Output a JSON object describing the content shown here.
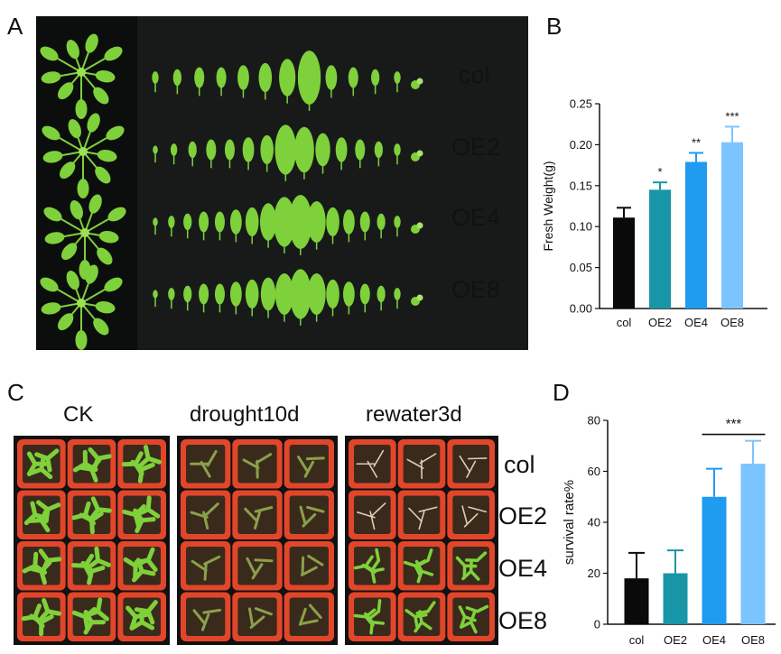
{
  "panels": {
    "a": "A",
    "b": "B",
    "c": "C",
    "d": "D"
  },
  "panelA": {
    "rows": [
      "col",
      "OE2",
      "OE4",
      "OE8"
    ]
  },
  "panelC": {
    "conditions": [
      "CK",
      "drought10d",
      "rewater3d"
    ],
    "rows": [
      "col",
      "OE2",
      "OE4",
      "OE8"
    ]
  },
  "colors": {
    "col": "#0a0a0a",
    "OE2": "#1896a8",
    "OE4": "#1f9bf0",
    "OE8": "#7cc4ff",
    "leaf": "#7ed13a",
    "pot": "#e2462a",
    "soil": "#3a2a1c"
  },
  "chart_data": [
    {
      "type": "bar",
      "panel": "B",
      "categories": [
        "col",
        "OE2",
        "OE4",
        "OE8"
      ],
      "values": [
        0.111,
        0.145,
        0.179,
        0.203
      ],
      "errors": [
        0.012,
        0.009,
        0.011,
        0.019
      ],
      "significance": [
        "",
        "*",
        "**",
        "***"
      ],
      "ylabel": "Fresh Weight(g)",
      "xlabel": "",
      "ylim": [
        0,
        0.25
      ],
      "yticks": [
        "0.00",
        "0.05",
        "0.10",
        "0.15",
        "0.20",
        "0.25"
      ]
    },
    {
      "type": "bar",
      "panel": "D",
      "categories": [
        "col",
        "OE2",
        "OE4",
        "OE8"
      ],
      "values": [
        18,
        20,
        50,
        63
      ],
      "errors": [
        10,
        9,
        11,
        9
      ],
      "bracket": {
        "from": "OE4",
        "to": "OE8",
        "label": "***"
      },
      "ylabel": "survival rate%",
      "xlabel": "",
      "ylim": [
        0,
        80
      ],
      "yticks": [
        "0",
        "20",
        "40",
        "60",
        "80"
      ]
    }
  ]
}
